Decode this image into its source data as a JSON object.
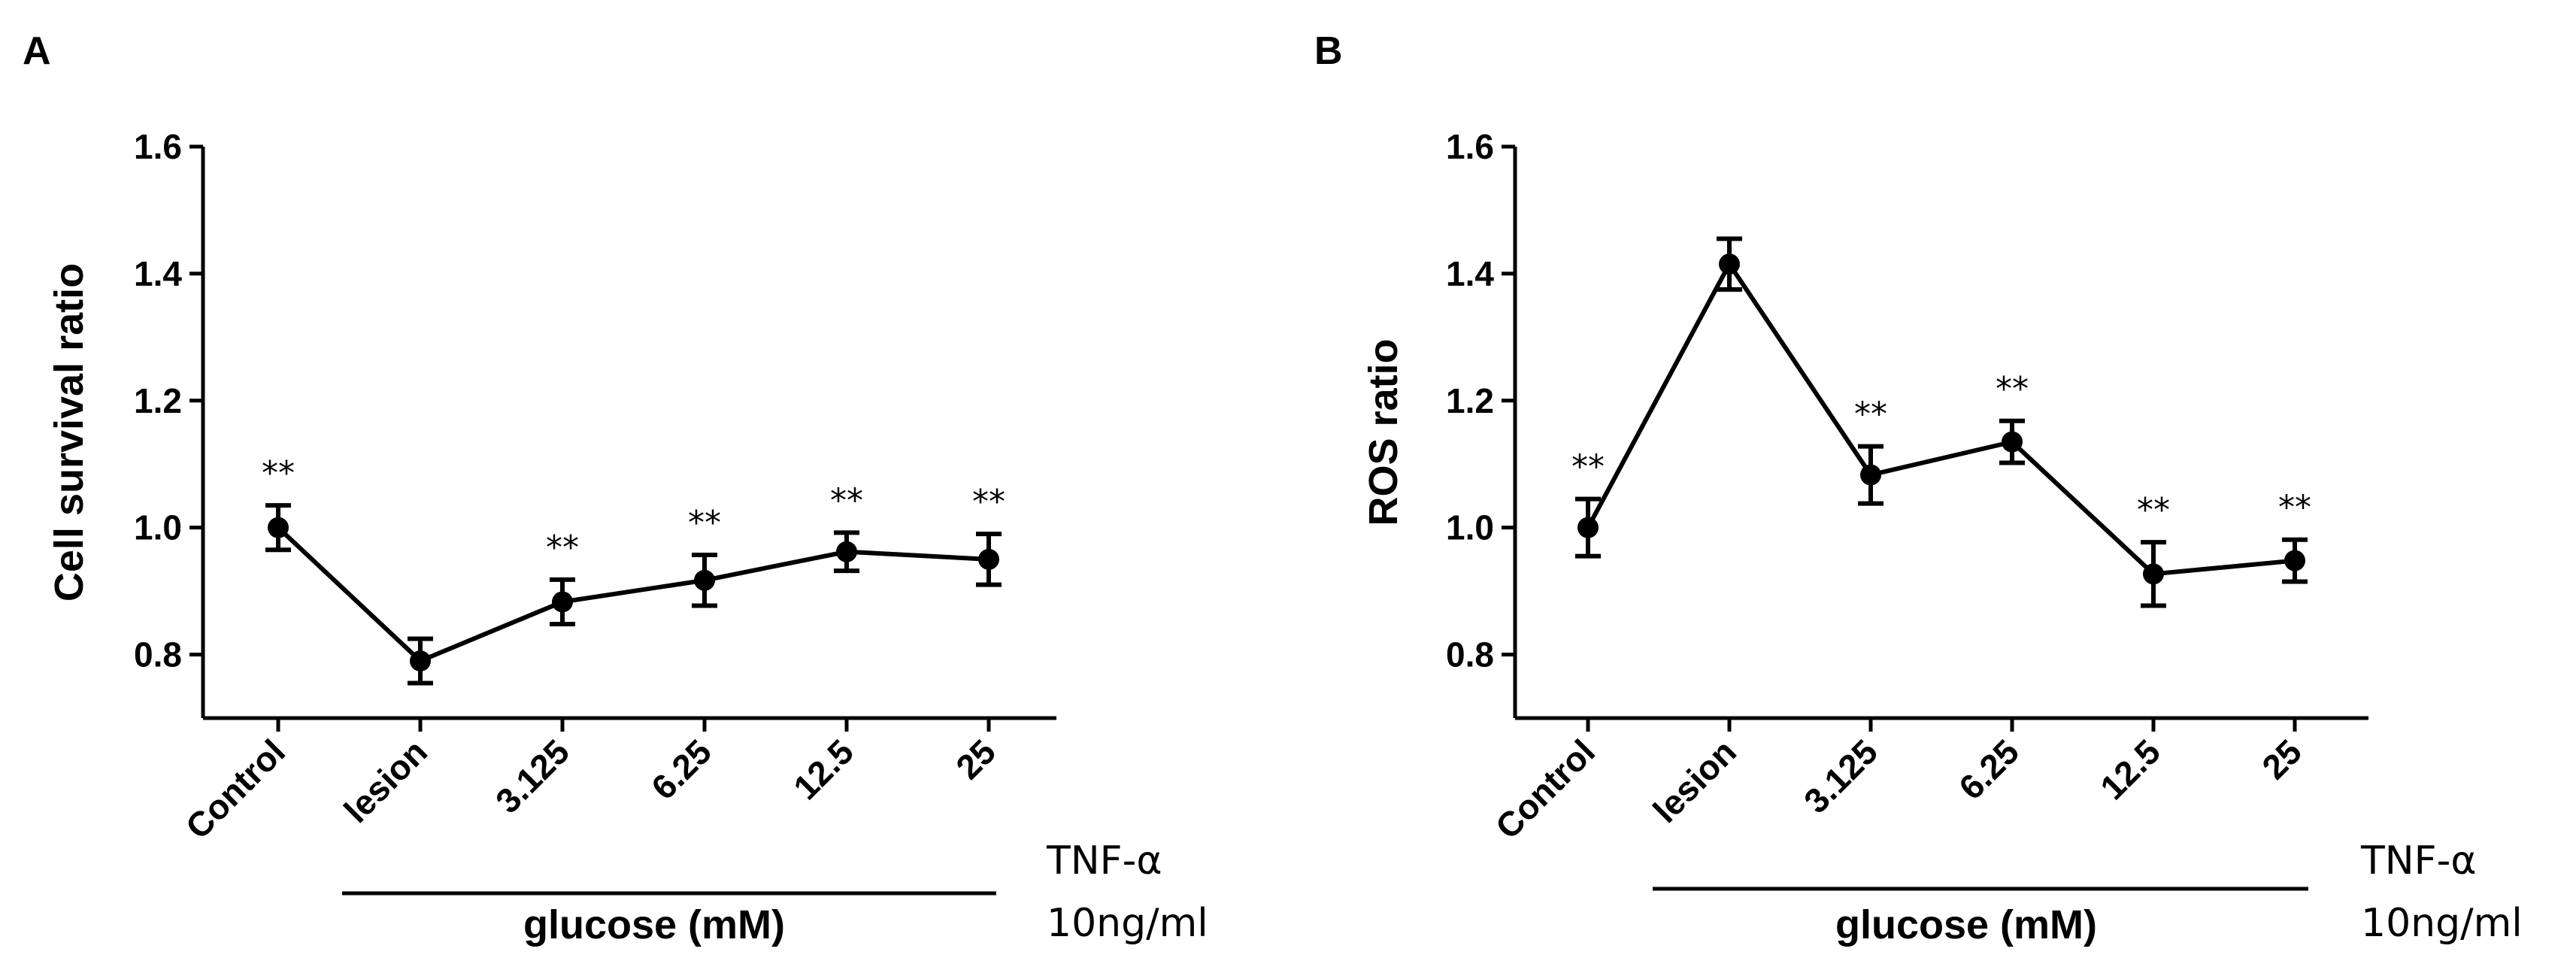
{
  "chart_data": [
    {
      "panel": "A",
      "type": "line",
      "title": "",
      "xlabel": "",
      "ylabel": "Cell survival ratio",
      "categories": [
        "Control",
        "lesion",
        "3.125",
        "6.25",
        "12.5",
        "25"
      ],
      "values": [
        1.0,
        0.79,
        0.883,
        0.917,
        0.962,
        0.95
      ],
      "errors": [
        0.035,
        0.035,
        0.035,
        0.04,
        0.03,
        0.04
      ],
      "significance": [
        "**",
        "",
        "**",
        "**",
        "**",
        "**"
      ],
      "ylim": [
        0.7,
        1.6
      ],
      "yticks": [
        "0.8",
        "1.0",
        "1.2",
        "1.4",
        "1.6"
      ],
      "group_label": "glucose (mM)",
      "treatment_label_line1": "TNF-α",
      "treatment_label_line2": "10ng/ml"
    },
    {
      "panel": "B",
      "type": "line",
      "title": "",
      "xlabel": "",
      "ylabel": "ROS ratio",
      "categories": [
        "Control",
        "lesion",
        "3.125",
        "6.25",
        "12.5",
        "25"
      ],
      "values": [
        1.0,
        1.415,
        1.083,
        1.135,
        0.927,
        0.948
      ],
      "errors": [
        0.045,
        0.04,
        0.045,
        0.033,
        0.05,
        0.033
      ],
      "significance": [
        "**",
        "",
        "**",
        "**",
        "**",
        "**"
      ],
      "ylim": [
        0.7,
        1.6
      ],
      "yticks": [
        "0.8",
        "1.0",
        "1.2",
        "1.4",
        "1.6"
      ],
      "group_label": "glucose (mM)",
      "treatment_label_line1": "TNF-α",
      "treatment_label_line2": "10ng/ml"
    }
  ]
}
